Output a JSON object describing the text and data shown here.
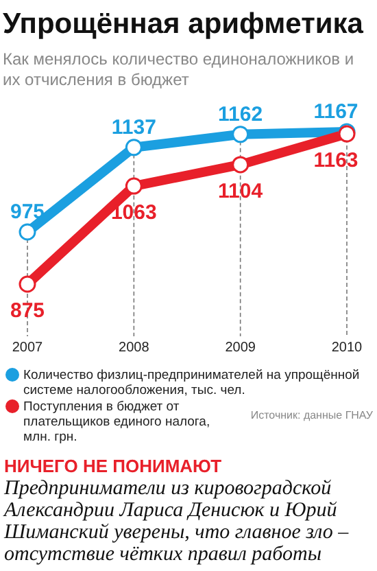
{
  "chart_data": {
    "type": "line",
    "title": "Упрощённая арифметика",
    "subtitle": "Как менялось количество единоналожников и их отчисления в бюджет",
    "categories": [
      "2007",
      "2008",
      "2009",
      "2010"
    ],
    "series": [
      {
        "name": "Количество физлиц-предпринимателей на упрощённой системе налогообложения, тыс. чел.",
        "color": "#1b9fe0",
        "values": [
          975,
          1137,
          1162,
          1167
        ]
      },
      {
        "name": "Поступления в бюджет от плательщиков единого налога, млн. грн.",
        "color": "#e8202a",
        "values": [
          875,
          1063,
          1104,
          1163
        ]
      }
    ],
    "data_labels": true,
    "marker": "circle",
    "grid": "x",
    "legend": "bottom",
    "annotations": [
      "Источник: данные ГНАУ",
      "НИЧЕГО НЕ ПОНИМАЮТ",
      "Предприниматели из кировоградской Александрии Лариса Денисюк и Юрий Шиманский уверены, что главное зло – отсутствие чётких правил работы"
    ]
  }
}
